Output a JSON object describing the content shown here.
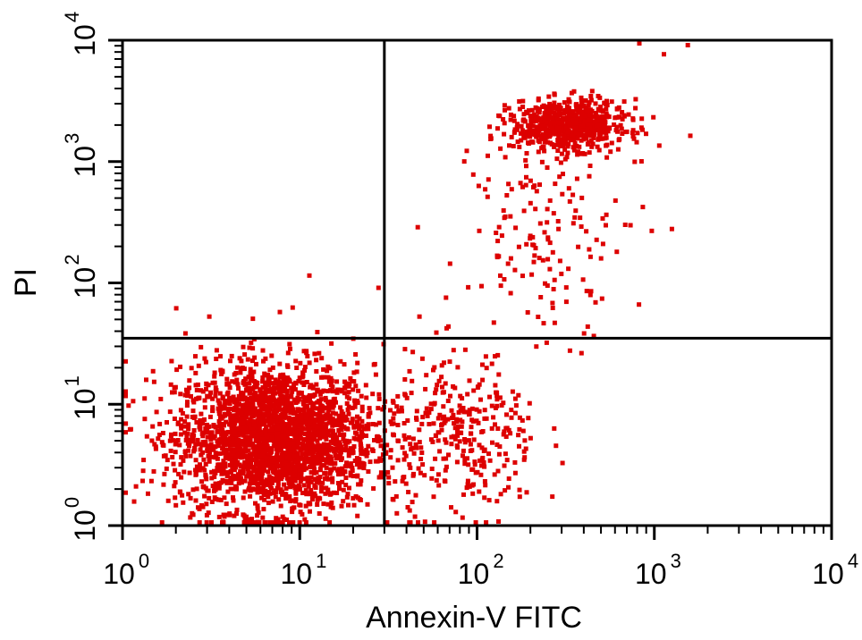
{
  "chart_data": {
    "type": "scatter",
    "title": "",
    "xlabel": "Annexin-V FITC",
    "ylabel": "PI",
    "xscale": "log",
    "yscale": "log",
    "xlim": [
      1,
      10000
    ],
    "ylim": [
      1,
      10000
    ],
    "x_ticks": [
      {
        "value": 1,
        "base": "10",
        "exp": "0"
      },
      {
        "value": 10,
        "base": "10",
        "exp": "1"
      },
      {
        "value": 100,
        "base": "10",
        "exp": "2"
      },
      {
        "value": 1000,
        "base": "10",
        "exp": "3"
      },
      {
        "value": 10000,
        "base": "10",
        "exp": "4"
      }
    ],
    "y_ticks": [
      {
        "value": 1,
        "base": "10",
        "exp": "0"
      },
      {
        "value": 10,
        "base": "10",
        "exp": "1"
      },
      {
        "value": 100,
        "base": "10",
        "exp": "2"
      },
      {
        "value": 1000,
        "base": "10",
        "exp": "3"
      },
      {
        "value": 10000,
        "base": "10",
        "exp": "4"
      }
    ],
    "quadrant_gates": {
      "x": 30,
      "y": 35
    },
    "point_color": "#dd0000",
    "grid": false,
    "legend": "none",
    "clusters": [
      {
        "center_x": 7,
        "center_y": 5.5,
        "spread_x_decades": 0.28,
        "spread_y_decades": 0.3,
        "n": 2600
      },
      {
        "center_x": 80,
        "center_y": 5.5,
        "spread_x_decades": 0.22,
        "spread_y_decades": 0.35,
        "n": 320
      },
      {
        "center_x": 320,
        "center_y": 2100,
        "spread_x_decades": 0.16,
        "spread_y_decades": 0.1,
        "n": 650
      },
      {
        "center_x": 250,
        "center_y": 300,
        "spread_x_decades": 0.22,
        "spread_y_decades": 0.45,
        "n": 160
      }
    ],
    "points": [
      [
        3,
        55
      ],
      [
        2.2,
        40
      ],
      [
        7.5,
        60
      ],
      [
        11,
        120
      ],
      [
        27,
        95
      ],
      [
        45,
        300
      ],
      [
        100,
        280
      ],
      [
        940,
        280
      ],
      [
        1220,
        290
      ],
      [
        1500,
        9500
      ],
      [
        800,
        10000
      ],
      [
        1100,
        8000
      ],
      [
        85,
        9
      ],
      [
        46,
        55
      ],
      [
        390,
        40
      ]
    ]
  }
}
